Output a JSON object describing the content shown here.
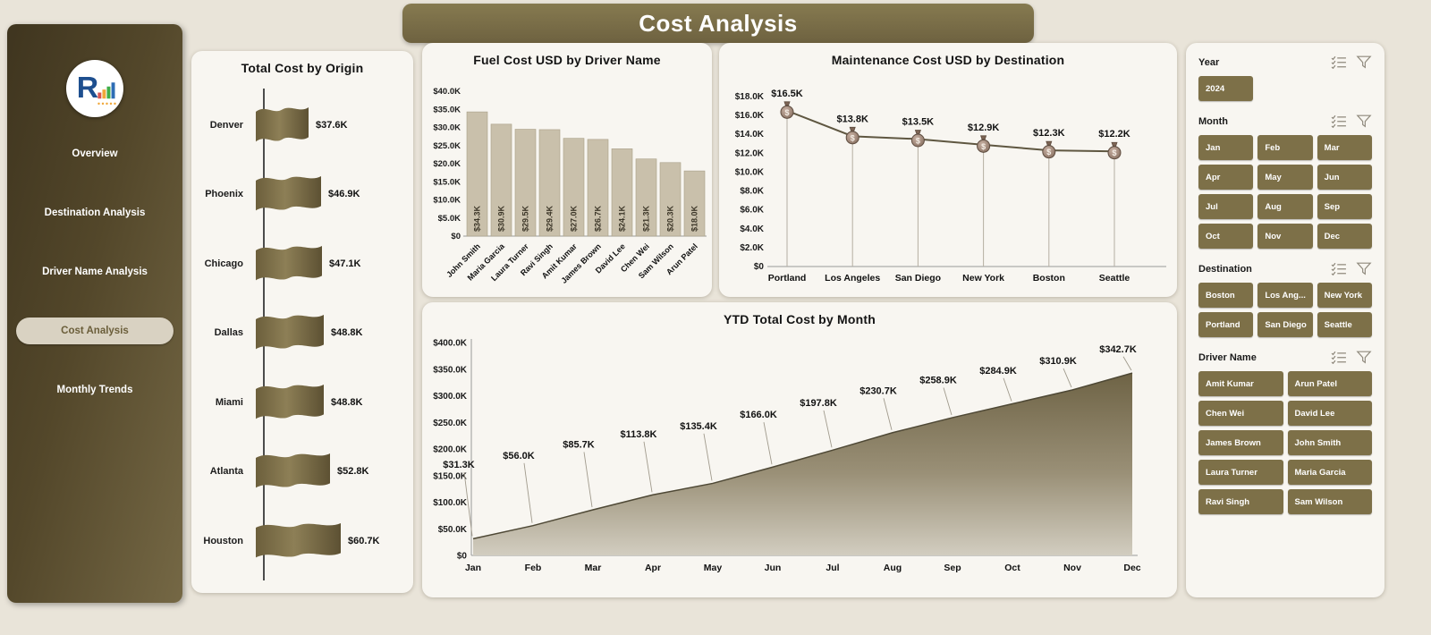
{
  "page": {
    "title": "Cost Analysis"
  },
  "sidebar": {
    "logo_letter": "R",
    "items": [
      {
        "label": "Overview",
        "active": false
      },
      {
        "label": "Destination Analysis",
        "active": false
      },
      {
        "label": "Driver Name Analysis",
        "active": false
      },
      {
        "label": "Cost Analysis",
        "active": true
      },
      {
        "label": "Monthly Trends",
        "active": false
      }
    ]
  },
  "filters": [
    {
      "id": "year",
      "label": "Year",
      "columns": 3,
      "options": [
        "2024"
      ]
    },
    {
      "id": "month",
      "label": "Month",
      "columns": 3,
      "options": [
        "Jan",
        "Feb",
        "Mar",
        "Apr",
        "May",
        "Jun",
        "Jul",
        "Aug",
        "Sep",
        "Oct",
        "Nov",
        "Dec"
      ]
    },
    {
      "id": "destination",
      "label": "Destination",
      "columns": 3,
      "options": [
        "Boston",
        "Los Ang...",
        "New York",
        "Portland",
        "San Diego",
        "Seattle"
      ]
    },
    {
      "id": "driver-name",
      "label": "Driver Name",
      "columns": 2,
      "options": [
        "Amit Kumar",
        "Arun Patel",
        "Chen Wei",
        "David Lee",
        "James Brown",
        "John Smith",
        "Laura Turner",
        "Maria Garcia",
        "Ravi Singh",
        "Sam Wilson"
      ]
    }
  ],
  "colors": {
    "accent": "#7d7048",
    "bar_fill": "#c9c0ab",
    "area_top": "#6e6345",
    "area_bottom": "#d2cdc0",
    "line": "#5f5741"
  },
  "chart_data": [
    {
      "type": "bar",
      "orientation": "horizontal",
      "title": "Total Cost by Origin",
      "categories": [
        "Denver",
        "Phoenix",
        "Chicago",
        "Dallas",
        "Miami",
        "Atlanta",
        "Houston"
      ],
      "values": [
        37600,
        46900,
        47100,
        48800,
        48800,
        52800,
        60700
      ],
      "labels": [
        "$37.6K",
        "$46.9K",
        "$47.1K",
        "$48.8K",
        "$48.8K",
        "$52.8K",
        "$60.7K"
      ],
      "marker": "flag"
    },
    {
      "type": "bar",
      "title": "Fuel Cost USD by Driver Name",
      "categories": [
        "John Smith",
        "Maria Garcia",
        "Laura Turner",
        "Ravi Singh",
        "Amit Kumar",
        "James Brown",
        "David Lee",
        "Chen Wei",
        "Sam Wilson",
        "Arun Patel"
      ],
      "values": [
        34300,
        30900,
        29500,
        29400,
        27000,
        26700,
        24100,
        21300,
        20300,
        18000
      ],
      "labels": [
        "$34.3K",
        "$30.9K",
        "$29.5K",
        "$29.4K",
        "$27.0K",
        "$26.7K",
        "$24.1K",
        "$21.3K",
        "$20.3K",
        "$18.0K"
      ],
      "ylim": [
        0,
        40000
      ],
      "yticks": [
        "$0",
        "$5.0K",
        "$10.0K",
        "$15.0K",
        "$20.0K",
        "$25.0K",
        "$30.0K",
        "$35.0K",
        "$40.0K"
      ]
    },
    {
      "type": "line",
      "title": "Maintenance Cost USD by Destination",
      "categories": [
        "Portland",
        "Los Angeles",
        "San Diego",
        "New York",
        "Boston",
        "Seattle"
      ],
      "values": [
        16500,
        13800,
        13500,
        12900,
        12300,
        12200
      ],
      "labels": [
        "$16.5K",
        "$13.8K",
        "$13.5K",
        "$12.9K",
        "$12.3K",
        "$12.2K"
      ],
      "ylim": [
        0,
        18000
      ],
      "yticks": [
        "$0",
        "$2.0K",
        "$4.0K",
        "$6.0K",
        "$8.0K",
        "$10.0K",
        "$12.0K",
        "$14.0K",
        "$16.0K",
        "$18.0K"
      ],
      "marker": "money-bag"
    },
    {
      "type": "area",
      "title": "YTD Total Cost by Month",
      "categories": [
        "Jan",
        "Feb",
        "Mar",
        "Apr",
        "May",
        "Jun",
        "Jul",
        "Aug",
        "Sep",
        "Oct",
        "Nov",
        "Dec"
      ],
      "values": [
        31300,
        56000,
        85700,
        113800,
        135400,
        166000,
        197800,
        230700,
        258900,
        284900,
        310900,
        342700
      ],
      "labels": [
        "$31.3K",
        "$56.0K",
        "$85.7K",
        "$113.8K",
        "$135.4K",
        "$166.0K",
        "$197.8K",
        "$230.7K",
        "$258.9K",
        "$284.9K",
        "$310.9K",
        "$342.7K"
      ],
      "ylim": [
        0,
        400000
      ],
      "yticks": [
        "$0",
        "$50.0K",
        "$100.0K",
        "$150.0K",
        "$200.0K",
        "$250.0K",
        "$300.0K",
        "$350.0K",
        "$400.0K"
      ]
    }
  ]
}
